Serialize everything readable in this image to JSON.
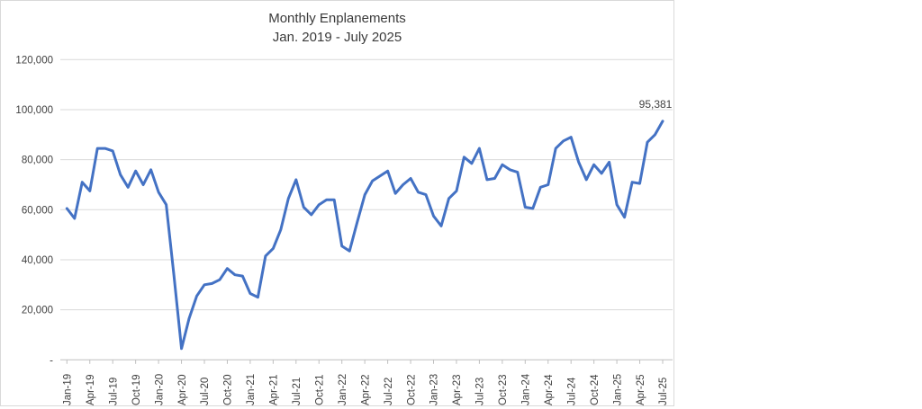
{
  "chart": {
    "title": "Monthly Enplanements",
    "subtitle": "Jan. 2019 - July 2025"
  },
  "chart_data": {
    "type": "line",
    "title": "Monthly Enplanements",
    "subtitle": "Jan. 2019 - July 2025",
    "xlabel": "",
    "ylabel": "",
    "ylim": [
      0,
      120000
    ],
    "ytick_interval": 20000,
    "ytick_labels": [
      "-",
      "20,000",
      "40,000",
      "60,000",
      "80,000",
      "100,000",
      "120,000"
    ],
    "tick_every": 3,
    "grid": true,
    "legend": "none",
    "line_color": "#4472C4",
    "gridline_color": "#d9d9d9",
    "axis_color": "#bfbfbf",
    "text_color": "#404040",
    "annotation": {
      "text": "95,381",
      "index": 78,
      "value": 95381
    },
    "x": [
      "Jan-19",
      "Feb-19",
      "Mar-19",
      "Apr-19",
      "May-19",
      "Jun-19",
      "Jul-19",
      "Aug-19",
      "Sep-19",
      "Oct-19",
      "Nov-19",
      "Dec-19",
      "Jan-20",
      "Feb-20",
      "Mar-20",
      "Apr-20",
      "May-20",
      "Jun-20",
      "Jul-20",
      "Aug-20",
      "Sep-20",
      "Oct-20",
      "Nov-20",
      "Dec-20",
      "Jan-21",
      "Feb-21",
      "Mar-21",
      "Apr-21",
      "May-21",
      "Jun-21",
      "Jul-21",
      "Aug-21",
      "Sep-21",
      "Oct-21",
      "Nov-21",
      "Dec-21",
      "Jan-22",
      "Feb-22",
      "Mar-22",
      "Apr-22",
      "May-22",
      "Jun-22",
      "Jul-22",
      "Aug-22",
      "Sep-22",
      "Oct-22",
      "Nov-22",
      "Dec-22",
      "Jan-23",
      "Feb-23",
      "Mar-23",
      "Apr-23",
      "May-23",
      "Jun-23",
      "Jul-23",
      "Aug-23",
      "Sep-23",
      "Oct-23",
      "Nov-23",
      "Dec-23",
      "Jan-24",
      "Feb-24",
      "Mar-24",
      "Apr-24",
      "May-24",
      "Jun-24",
      "Jul-24",
      "Aug-24",
      "Sep-24",
      "Oct-24",
      "Nov-24",
      "Dec-24",
      "Jan-25",
      "Feb-25",
      "Mar-25",
      "Apr-25",
      "May-25",
      "Jun-25",
      "Jul-25"
    ],
    "values": [
      60500,
      56500,
      71000,
      67500,
      84500,
      84500,
      83500,
      74000,
      69000,
      75500,
      70000,
      76000,
      67000,
      62000,
      34000,
      4500,
      16500,
      25500,
      30000,
      30500,
      32000,
      36500,
      34000,
      33500,
      26500,
      25000,
      41500,
      44500,
      52000,
      64500,
      72000,
      61000,
      58000,
      62000,
      64000,
      64000,
      45500,
      43500,
      55000,
      66000,
      71500,
      73500,
      75500,
      66500,
      70000,
      72500,
      67000,
      66000,
      57500,
      53500,
      64500,
      67500,
      81000,
      78500,
      84500,
      72000,
      72500,
      78000,
      76000,
      75000,
      61000,
      60500,
      69000,
      70000,
      84500,
      87500,
      89000,
      79000,
      72000,
      78000,
      74500,
      79000,
      62000,
      57000,
      71000,
      70500,
      87000,
      90000,
      95381
    ]
  }
}
